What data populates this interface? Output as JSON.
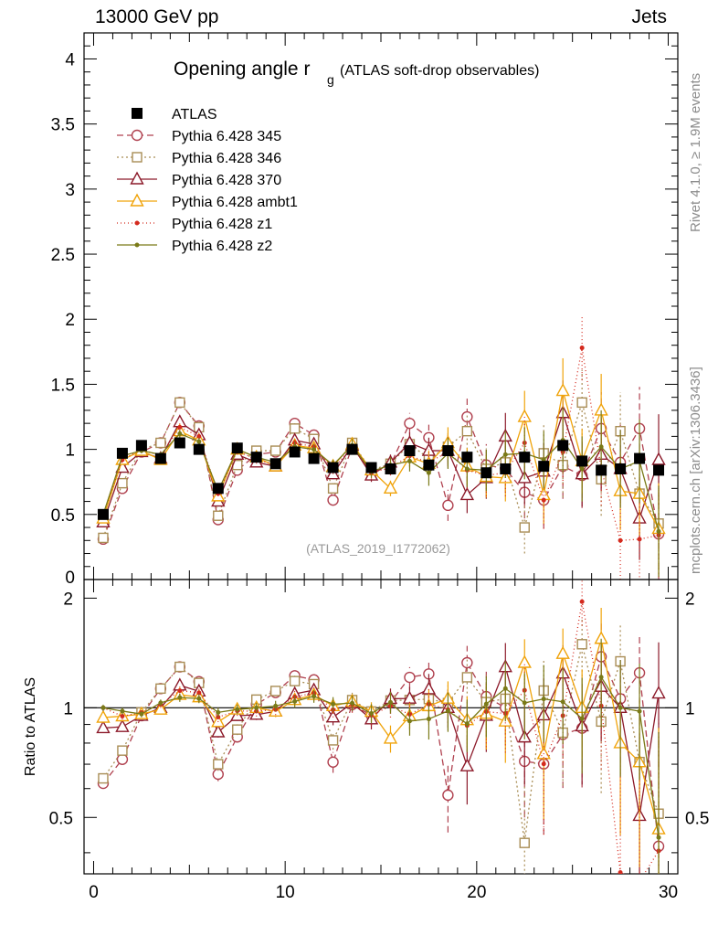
{
  "header": {
    "left": "13000 GeV pp",
    "right": "Jets"
  },
  "side_labels": {
    "top": "Rivet 4.1.0, ≥ 1.9M events",
    "bottom": "mcplots.cern.ch [arXiv:1306.3436]"
  },
  "chart_data": {
    "type": "scatter",
    "title": "Opening angle r",
    "title_subscript": "g",
    "subtitle": "(ATLAS soft-drop observables)",
    "watermark": "(ATLAS_2019_I1772062)",
    "xlabel": "",
    "ylabel": "",
    "ratio_ylabel": "Ratio to ATLAS",
    "xlim": [
      -0.5,
      30.5
    ],
    "ylim": [
      0,
      4.2
    ],
    "ratio_ylim": [
      0.35,
      2.25
    ],
    "x_ticks": [
      0,
      10,
      20,
      30
    ],
    "y_ticks": [
      0.5,
      1,
      1.5,
      2,
      2.5,
      3,
      3.5,
      4
    ],
    "y_tick_labels": [
      "0.5",
      "1",
      "1.5",
      "2",
      "2.5",
      "3",
      "3.5",
      "4"
    ],
    "y_zero_label": "0",
    "ratio_ticks": [
      0.5,
      1,
      2
    ],
    "ratio_tick_labels": [
      "0.5",
      "1",
      "2"
    ],
    "x": [
      0.5,
      1.5,
      2.5,
      3.5,
      4.5,
      5.5,
      6.5,
      7.5,
      8.5,
      9.5,
      10.5,
      11.5,
      12.5,
      13.5,
      14.5,
      15.5,
      16.5,
      17.5,
      18.5,
      19.5,
      20.5,
      21.5,
      22.5,
      23.5,
      24.5,
      25.5,
      26.5,
      27.5,
      28.5,
      29.5
    ],
    "data": {
      "name": "ATLAS",
      "values": [
        0.5,
        0.97,
        1.03,
        0.93,
        1.05,
        1.0,
        0.7,
        1.01,
        0.94,
        0.89,
        0.98,
        0.93,
        0.86,
        1.0,
        0.86,
        0.85,
        0.99,
        0.88,
        0.99,
        0.94,
        0.82,
        0.85,
        0.94,
        0.87,
        1.03,
        0.91,
        0.84,
        0.85,
        0.93,
        0.84
      ]
    },
    "series": [
      {
        "name": "Pythia 6.428 345",
        "color": "#b0414f",
        "marker": "circle",
        "dash": "7,4",
        "values": [
          0.31,
          0.7,
          0.98,
          1.05,
          1.36,
          1.18,
          0.46,
          0.84,
          0.96,
          0.98,
          1.2,
          1.11,
          0.61,
          1.02,
          0.82,
          0.88,
          1.2,
          1.09,
          0.57,
          1.25,
          0.88,
          0.85,
          0.67,
          0.61,
          0.87,
          0.8,
          1.16,
          0.9,
          1.16,
          0.35
        ],
        "errors": [
          0.01,
          0.02,
          0.02,
          0.02,
          0.03,
          0.03,
          0.02,
          0.03,
          0.03,
          0.03,
          0.04,
          0.04,
          0.04,
          0.05,
          0.05,
          0.06,
          0.08,
          0.1,
          0.12,
          0.14,
          0.16,
          0.18,
          0.2,
          0.22,
          0.25,
          0.25,
          0.28,
          0.3,
          0.32,
          0.35
        ]
      },
      {
        "name": "Pythia 6.428 346",
        "color": "#a98d55",
        "marker": "square",
        "dash": "2,3",
        "values": [
          0.32,
          0.74,
          1.0,
          1.05,
          1.36,
          1.17,
          0.49,
          0.88,
          0.99,
          0.99,
          1.16,
          1.08,
          0.7,
          1.05,
          0.84,
          0.89,
          1.04,
          0.93,
          1.02,
          1.14,
          0.85,
          0.9,
          0.4,
          0.97,
          0.88,
          1.36,
          0.77,
          1.14,
          0.66,
          0.43
        ],
        "errors": [
          0.01,
          0.02,
          0.02,
          0.02,
          0.03,
          0.03,
          0.02,
          0.03,
          0.03,
          0.03,
          0.04,
          0.04,
          0.04,
          0.05,
          0.05,
          0.06,
          0.08,
          0.1,
          0.12,
          0.14,
          0.16,
          0.18,
          0.2,
          0.22,
          0.25,
          0.25,
          0.28,
          0.3,
          0.32,
          0.35
        ]
      },
      {
        "name": "Pythia 6.428 370",
        "color": "#8c1a2a",
        "marker": "triangle",
        "dash": "",
        "values": [
          0.44,
          0.86,
          0.98,
          0.93,
          1.21,
          1.11,
          0.6,
          0.96,
          0.9,
          0.87,
          1.07,
          1.04,
          0.81,
          1.03,
          0.8,
          0.9,
          1.05,
          0.99,
          0.99,
          0.65,
          0.78,
          1.1,
          0.78,
          0.83,
          1.28,
          0.81,
          0.96,
          0.85,
          0.47,
          0.92
        ],
        "errors": [
          0.01,
          0.02,
          0.02,
          0.02,
          0.03,
          0.03,
          0.02,
          0.03,
          0.03,
          0.03,
          0.04,
          0.04,
          0.04,
          0.05,
          0.05,
          0.06,
          0.08,
          0.1,
          0.12,
          0.14,
          0.16,
          0.18,
          0.2,
          0.22,
          0.25,
          0.25,
          0.28,
          0.3,
          0.32,
          0.35
        ]
      },
      {
        "name": "Pythia 6.428 ambt1",
        "color": "#f0a30a",
        "marker": "triangle",
        "dash": "",
        "values": [
          0.47,
          0.92,
          0.99,
          0.92,
          1.14,
          1.07,
          0.64,
          1.0,
          0.94,
          0.87,
          1.03,
          1.01,
          0.87,
          1.04,
          0.84,
          0.7,
          0.94,
          0.89,
          1.05,
          0.87,
          0.79,
          0.78,
          1.25,
          0.65,
          1.45,
          0.91,
          1.3,
          0.68,
          0.66,
          0.39
        ],
        "errors": [
          0.01,
          0.02,
          0.02,
          0.02,
          0.03,
          0.03,
          0.02,
          0.03,
          0.03,
          0.03,
          0.04,
          0.04,
          0.04,
          0.05,
          0.05,
          0.06,
          0.08,
          0.1,
          0.12,
          0.14,
          0.16,
          0.18,
          0.2,
          0.22,
          0.25,
          0.25,
          0.28,
          0.3,
          0.32,
          0.35
        ]
      },
      {
        "name": "Pythia 6.428 z1",
        "color": "#d42a1e",
        "marker": "dot",
        "dash": "1,3",
        "values": [
          0.5,
          0.92,
          1.0,
          0.95,
          1.17,
          1.1,
          0.66,
          0.99,
          0.92,
          0.88,
          1.05,
          1.02,
          0.85,
          1.02,
          0.82,
          0.86,
          0.95,
          0.9,
          0.98,
          0.84,
          0.8,
          0.82,
          1.05,
          0.61,
          0.98,
          1.78,
          0.85,
          0.3,
          0.31,
          0.34
        ],
        "errors": [
          0.01,
          0.02,
          0.02,
          0.02,
          0.03,
          0.03,
          0.02,
          0.03,
          0.03,
          0.03,
          0.04,
          0.04,
          0.04,
          0.05,
          0.05,
          0.06,
          0.08,
          0.1,
          0.12,
          0.14,
          0.16,
          0.18,
          0.2,
          0.22,
          0.25,
          0.25,
          0.28,
          0.3,
          0.32,
          0.35
        ]
      },
      {
        "name": "Pythia 6.428 z2",
        "color": "#7a7a18",
        "marker": "dot",
        "dash": "",
        "values": [
          0.5,
          0.95,
          0.99,
          0.96,
          1.12,
          1.06,
          0.68,
          1.0,
          0.94,
          0.9,
          1.02,
          1.0,
          0.88,
          1.03,
          0.83,
          0.88,
          0.91,
          0.82,
          0.97,
          0.85,
          0.84,
          0.96,
          0.97,
          0.92,
          1.07,
          0.85,
          1.02,
          0.85,
          0.91,
          0.37
        ],
        "errors": [
          0.01,
          0.02,
          0.02,
          0.02,
          0.03,
          0.03,
          0.02,
          0.03,
          0.03,
          0.03,
          0.04,
          0.04,
          0.04,
          0.05,
          0.05,
          0.06,
          0.08,
          0.1,
          0.12,
          0.14,
          0.16,
          0.18,
          0.2,
          0.22,
          0.25,
          0.25,
          0.28,
          0.3,
          0.32,
          0.35
        ]
      }
    ]
  }
}
